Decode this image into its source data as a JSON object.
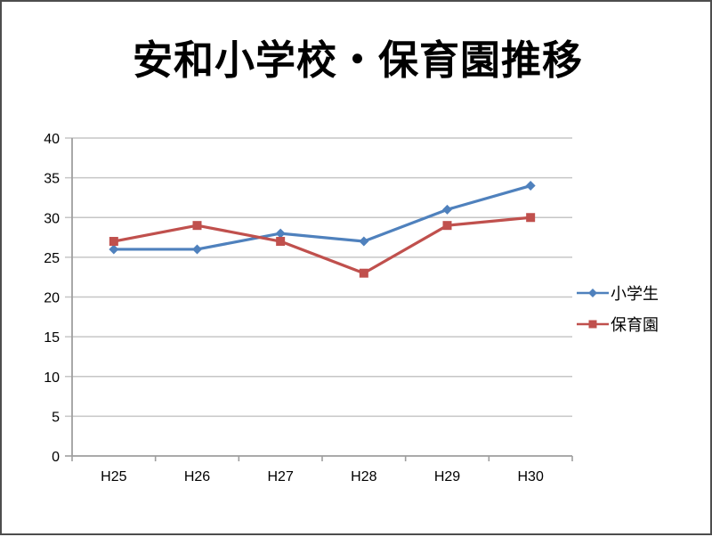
{
  "page": {
    "title": "安和小学校・保育園推移"
  },
  "chart_data": {
    "type": "line",
    "title": "安和小学校・保育園推移",
    "categories": [
      "H25",
      "H26",
      "H27",
      "H28",
      "H29",
      "H30"
    ],
    "series": [
      {
        "name": "小学生",
        "values": [
          26,
          26,
          28,
          27,
          31,
          34
        ],
        "color": "#4F81BD",
        "marker": "diamond"
      },
      {
        "name": "保育園",
        "values": [
          27,
          29,
          27,
          23,
          29,
          30
        ],
        "color": "#C0504D",
        "marker": "square"
      }
    ],
    "xlabel": "",
    "ylabel": "",
    "ylim": [
      0,
      40
    ],
    "ytick_step": 5,
    "grid": true,
    "legend_position": "right",
    "colors": {
      "gridline": "#C6C6C6",
      "axis": "#9E9E9E",
      "tick_label": "#000000",
      "background": "#FFFFFF"
    }
  }
}
